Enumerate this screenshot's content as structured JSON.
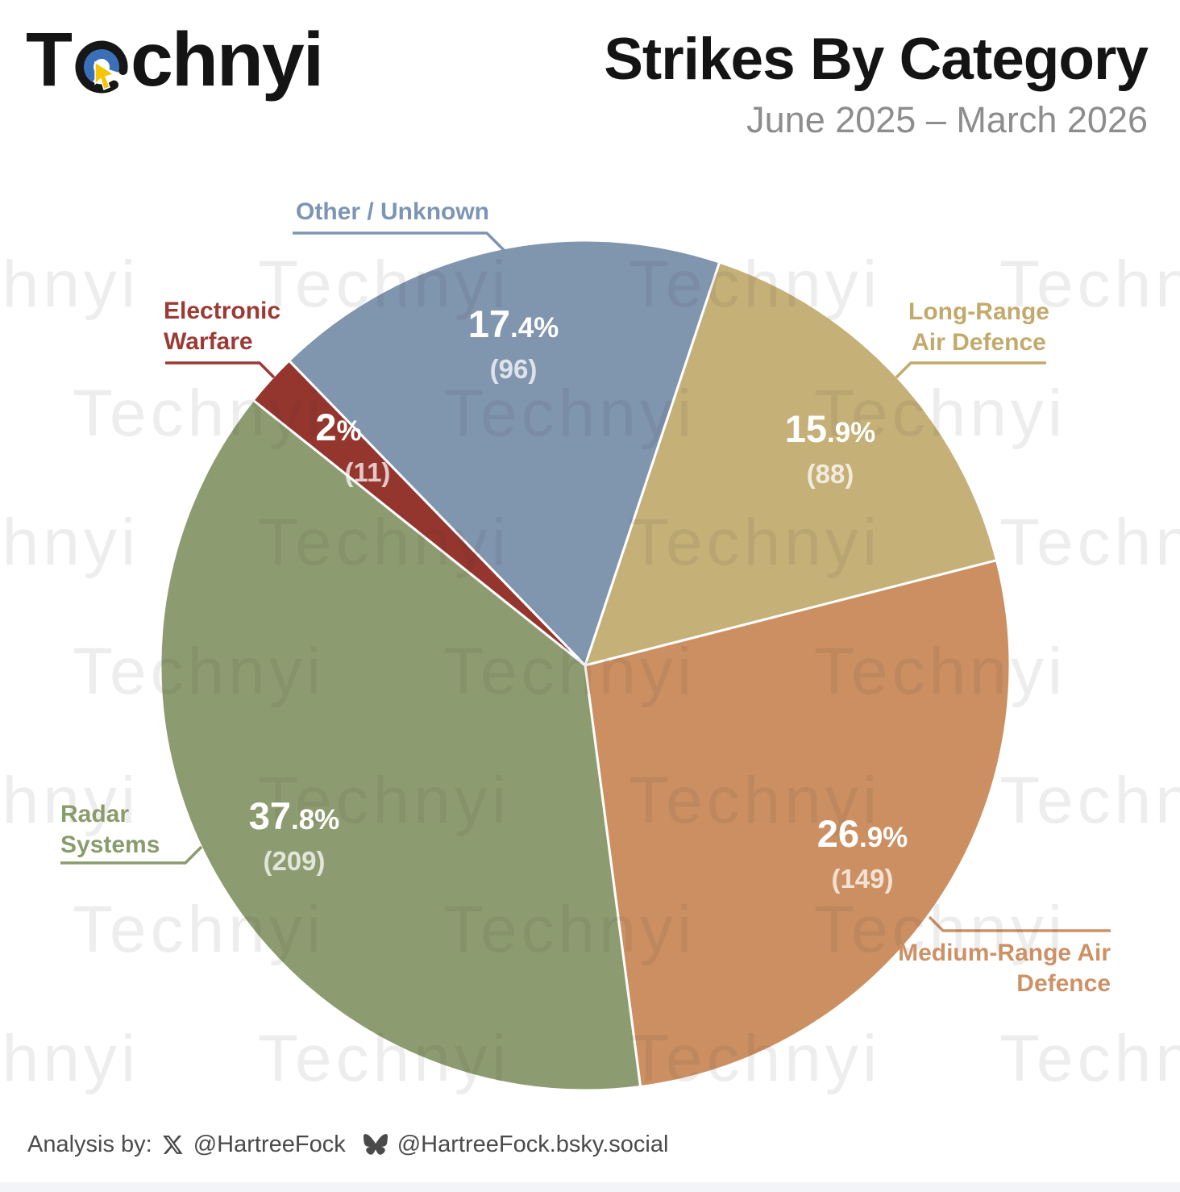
{
  "logo": {
    "t": "T",
    "rest": "chnyi"
  },
  "header": {
    "title": "Strikes By Category",
    "subtitle": "June 2025 – March 2026"
  },
  "watermark": {
    "text": "Technyi"
  },
  "chart_data": {
    "type": "pie",
    "title": "Strikes By Category",
    "subtitle": "June 2025 – March 2026",
    "direction": "clockwise",
    "start_angle_deg": 134.2,
    "slices": [
      {
        "label": "Other / Unknown",
        "pct": 17.4,
        "count": 96,
        "color": "#8095ae",
        "label_color": "#7d95b4"
      },
      {
        "label": "Long-Range Air Defence",
        "pct": 15.9,
        "count": 88,
        "color": "#c5b077",
        "label_color": "#c3a96b"
      },
      {
        "label": "Medium-Range Air Defence",
        "pct": 26.9,
        "count": 149,
        "color": "#cc8f61",
        "label_color": "#cd9166"
      },
      {
        "label": "Radar Systems",
        "pct": 37.8,
        "count": 209,
        "color": "#8d9c70",
        "label_color": "#8a9b6c"
      },
      {
        "label": "Electronic Warfare",
        "pct": 2.0,
        "count": 11,
        "color": "#94352e",
        "label_color": "#9c3a35"
      }
    ]
  },
  "footer": {
    "prefix": "Analysis by:",
    "x_handle": "@HartreeFock",
    "bsky_handle": "@HartreeFock.bsky.social"
  }
}
